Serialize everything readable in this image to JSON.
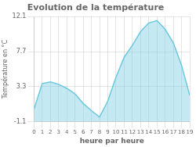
{
  "chart_data": {
    "type": "area",
    "title": "Evolution de la température",
    "xlabel": "heure par heure",
    "ylabel": "Température en °C",
    "x": [
      0,
      1,
      2,
      3,
      4,
      5,
      6,
      7,
      8,
      9,
      10,
      11,
      12,
      13,
      14,
      15,
      16,
      17,
      18,
      19
    ],
    "values": [
      0.5,
      3.7,
      3.9,
      3.6,
      3.1,
      2.4,
      1.2,
      0.3,
      -0.5,
      1.5,
      4.5,
      7.0,
      8.5,
      10.2,
      11.3,
      11.6,
      10.5,
      8.8,
      6.0,
      2.2
    ],
    "xlim": [
      0,
      19
    ],
    "ylim": [
      -1.1,
      12.1
    ],
    "xticks": [
      0,
      1,
      2,
      3,
      4,
      5,
      6,
      7,
      8,
      9,
      10,
      11,
      12,
      13,
      14,
      15,
      16,
      17,
      18,
      19
    ],
    "yticks": [
      -1.1,
      3.3,
      7.7,
      12.1
    ],
    "color": "#6cc8de",
    "grid": true
  }
}
